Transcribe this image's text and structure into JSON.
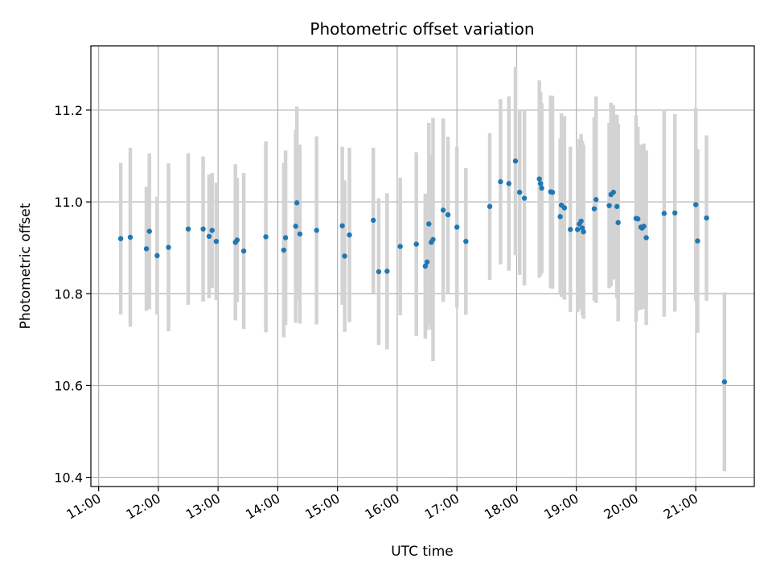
{
  "chart_data": {
    "type": "scatter",
    "title": "Photometric offset variation",
    "xlabel": "UTC time",
    "ylabel": "Photometric offset",
    "x_unit": "hours UTC",
    "xlim": [
      10.87,
      21.98
    ],
    "ylim": [
      10.38,
      11.34
    ],
    "x_ticks": [
      11,
      12,
      13,
      14,
      15,
      16,
      17,
      18,
      19,
      20,
      21
    ],
    "x_tick_labels": [
      "11:00",
      "12:00",
      "13:00",
      "14:00",
      "15:00",
      "16:00",
      "17:00",
      "18:00",
      "19:00",
      "20:00",
      "21:00"
    ],
    "y_ticks": [
      10.4,
      10.6,
      10.8,
      11.0,
      11.2
    ],
    "y_tick_labels": [
      "10.4",
      "10.6",
      "10.8",
      "11.0",
      "11.2"
    ],
    "grid": true,
    "colors": {
      "point": "#1f77b4",
      "errorbar": "#d3d3d3",
      "grid": "#b0b0b0",
      "axis": "#000000"
    },
    "series": [
      {
        "x": [
          11.37,
          11.53,
          11.8,
          11.85,
          11.98,
          12.17,
          12.5,
          12.75,
          12.85,
          12.9,
          12.97,
          13.29,
          13.32,
          13.43,
          13.8,
          14.1,
          14.13,
          14.3,
          14.32,
          14.37,
          14.65,
          15.08,
          15.12,
          15.2,
          15.6,
          15.69,
          15.83,
          16.05,
          16.32,
          16.47,
          16.5,
          16.53,
          16.57,
          16.6,
          16.77,
          16.85,
          17.0,
          17.15,
          17.55,
          17.73,
          17.87,
          17.98,
          18.05,
          18.13,
          18.38,
          18.4,
          18.42,
          18.57,
          18.6,
          18.73,
          18.75,
          18.8,
          18.9,
          19.02,
          19.05,
          19.08,
          19.1,
          19.12,
          19.3,
          19.33,
          19.55,
          19.58,
          19.62,
          19.68,
          19.7,
          20.0,
          20.03,
          20.08,
          20.1,
          20.13,
          20.17,
          20.47,
          20.65,
          21.0,
          21.03,
          21.18,
          21.48
        ],
        "y": [
          10.92,
          10.923,
          10.898,
          10.936,
          10.883,
          10.901,
          10.941,
          10.941,
          10.925,
          10.938,
          10.914,
          10.912,
          10.917,
          10.893,
          10.924,
          10.895,
          10.922,
          10.947,
          10.998,
          10.93,
          10.938,
          10.948,
          10.882,
          10.928,
          10.96,
          10.848,
          10.849,
          10.903,
          10.908,
          10.86,
          10.869,
          10.952,
          10.912,
          10.918,
          10.982,
          10.972,
          10.945,
          10.914,
          10.99,
          11.044,
          11.04,
          11.089,
          11.021,
          11.008,
          11.05,
          11.04,
          11.03,
          11.022,
          11.021,
          10.968,
          10.993,
          10.987,
          10.94,
          10.94,
          10.952,
          10.958,
          10.943,
          10.935,
          10.985,
          11.005,
          10.992,
          11.016,
          11.021,
          10.99,
          10.955,
          10.964,
          10.963,
          10.945,
          10.943,
          10.947,
          10.922,
          10.975,
          10.976,
          10.994,
          10.915,
          10.965,
          10.608
        ],
        "yerr": [
          0.165,
          0.195,
          0.135,
          0.17,
          0.128,
          0.183,
          0.165,
          0.158,
          0.135,
          0.125,
          0.128,
          0.17,
          0.135,
          0.17,
          0.208,
          0.19,
          0.19,
          0.21,
          0.21,
          0.195,
          0.205,
          0.172,
          0.165,
          0.19,
          0.158,
          0.16,
          0.17,
          0.15,
          0.2,
          0.158,
          0.148,
          0.22,
          0.19,
          0.265,
          0.2,
          0.17,
          0.175,
          0.16,
          0.16,
          0.18,
          0.19,
          0.205,
          0.18,
          0.19,
          0.215,
          0.2,
          0.185,
          0.21,
          0.21,
          0.17,
          0.2,
          0.2,
          0.18,
          0.18,
          0.185,
          0.19,
          0.19,
          0.19,
          0.2,
          0.225,
          0.18,
          0.2,
          0.19,
          0.2,
          0.215,
          0.225,
          0.2,
          0.18,
          0.17,
          0.18,
          0.19,
          0.225,
          0.215,
          0.21,
          0.2,
          0.18,
          0.195
        ]
      }
    ]
  }
}
